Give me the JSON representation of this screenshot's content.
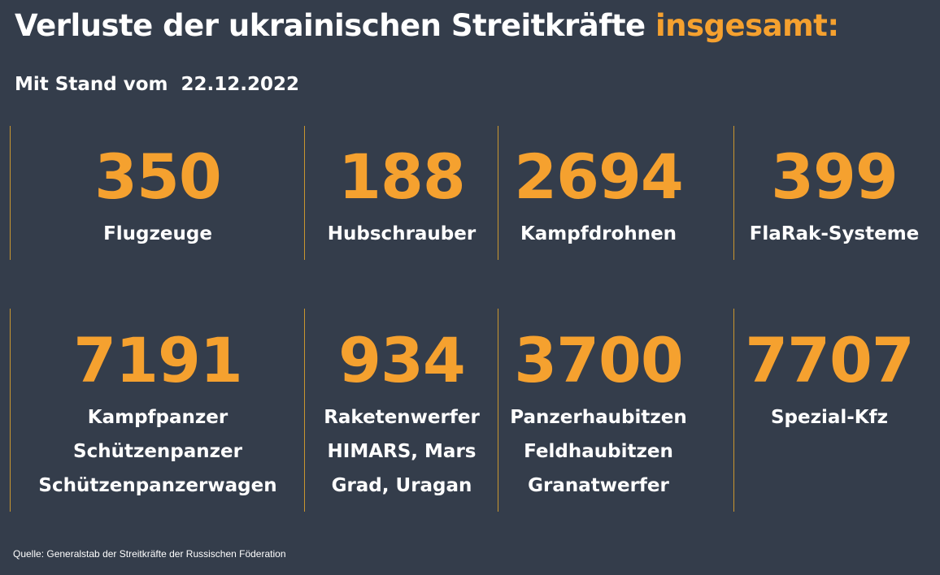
{
  "header": {
    "title_main": "Verluste der ukrainischen Streitkräfte ",
    "title_accent": "insgesamt:",
    "date_label": "Mit Stand vom",
    "date_value": "22.12.2022"
  },
  "stats": [
    {
      "value": "350",
      "lines": [
        "Flugzeuge"
      ]
    },
    {
      "value": "188",
      "lines": [
        "Hubschrauber"
      ]
    },
    {
      "value": "2694",
      "lines": [
        "Kampfdrohnen"
      ]
    },
    {
      "value": "399",
      "lines": [
        "FlaRak-Systeme"
      ]
    },
    {
      "value": "7191",
      "lines": [
        "Kampfpanzer",
        "Schützenpanzer",
        "Schützenpanzerwagen"
      ]
    },
    {
      "value": "934",
      "lines": [
        "Raketenwerfer",
        "HIMARS, Mars",
        "Grad, Uragan"
      ]
    },
    {
      "value": "3700",
      "lines": [
        "Panzerhaubitzen",
        "Feldhaubitzen",
        "Granatwerfer"
      ]
    },
    {
      "value": "7707",
      "lines": [
        "Spezial-Kfz"
      ]
    }
  ],
  "footer": {
    "source": "Quelle: Generalstab der Streitkräfte der Russischen Föderation"
  },
  "colors": {
    "background": "#343d4b",
    "accent": "#f5a12f",
    "text": "#ffffff",
    "divider": "#c9962f"
  }
}
